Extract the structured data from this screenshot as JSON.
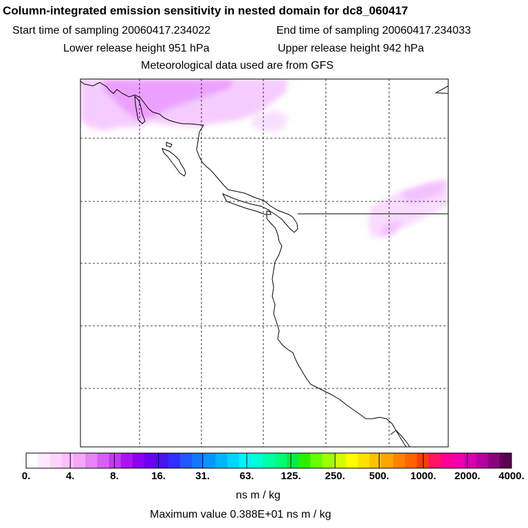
{
  "header": {
    "title": "Column-integrated emission sensitivity in nested domain for dc8_060417",
    "start_time": "Start time of sampling 20060417.234022",
    "end_time": "End time of sampling 20060417.234033",
    "lower_height": "Lower release height  951 hPa",
    "upper_height": "Upper release height  942 hPa",
    "met_data": "Meteorological data used are from GFS"
  },
  "colorbar": {
    "colors": [
      "#ffffff",
      "#ffe9ff",
      "#ffd4ff",
      "#ffbfff",
      "#f7a6f7",
      "#e784f7",
      "#d960f5",
      "#c33af2",
      "#a914ef",
      "#8a00ef",
      "#6a00ef",
      "#4a12ef",
      "#2e2eff",
      "#1f56ff",
      "#1276ff",
      "#0796ff",
      "#00b5ff",
      "#00d6ff",
      "#00f5ff",
      "#00ffd6",
      "#00ffa5",
      "#00ff76",
      "#00ee46",
      "#2aee00",
      "#66ff00",
      "#9cff00",
      "#d2ff00",
      "#ffff00",
      "#ffe100",
      "#ffc300",
      "#ffa500",
      "#ff8200",
      "#ff6400",
      "#ff3c00",
      "#ff1464",
      "#ff0096",
      "#f000b0",
      "#d800b0",
      "#b400a0",
      "#8c0080",
      "#5a0050"
    ],
    "ticks": [
      "0.",
      "4.",
      "8.",
      "16.",
      "31.",
      "63.",
      "125.",
      "250.",
      "500.",
      "1000.",
      "2000.",
      "4000."
    ],
    "units": "ns m / kg"
  },
  "footer": {
    "max_value": "Maximum value  0.388E+01 ns m / kg"
  },
  "map": {
    "plume_color": "#ee88ff",
    "grid": "dashed"
  }
}
